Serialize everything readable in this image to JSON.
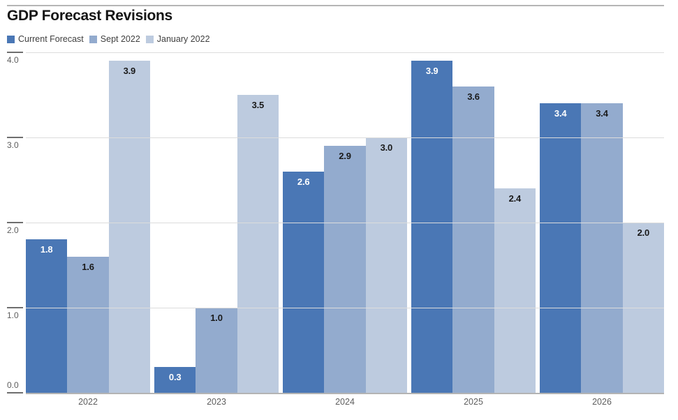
{
  "chart_data": {
    "type": "bar",
    "title": "GDP Forecast Revisions",
    "categories": [
      "2022",
      "2023",
      "2024",
      "2025",
      "2026"
    ],
    "series": [
      {
        "name": "Current Forecast",
        "color": "#4a77b5",
        "label_color": "#ffffff",
        "values": [
          1.8,
          0.3,
          2.6,
          3.9,
          3.4
        ]
      },
      {
        "name": "Sept 2022",
        "color": "#93abce",
        "label_color": "#1a1a1a",
        "values": [
          1.6,
          1.0,
          2.9,
          3.6,
          3.4
        ]
      },
      {
        "name": "January 2022",
        "color": "#bdcbdf",
        "label_color": "#1a1a1a",
        "values": [
          3.9,
          3.5,
          3.0,
          2.4,
          2.0
        ]
      }
    ],
    "ylim": [
      0,
      4
    ],
    "ytick_labels": [
      "4.0",
      "3.0",
      "2.0",
      "1.0",
      "0.0"
    ],
    "grid": true,
    "legend_position": "top-left",
    "value_labels": "inside-top",
    "colors": {
      "gridline": "#dcdcdc",
      "baseline": "#b3b3b3",
      "tick": "#6e6e6e",
      "axis_text": "#5e5e5e",
      "top_rule": "#b5b5b5",
      "title_text": "#151515",
      "legend_text": "#404040"
    }
  }
}
